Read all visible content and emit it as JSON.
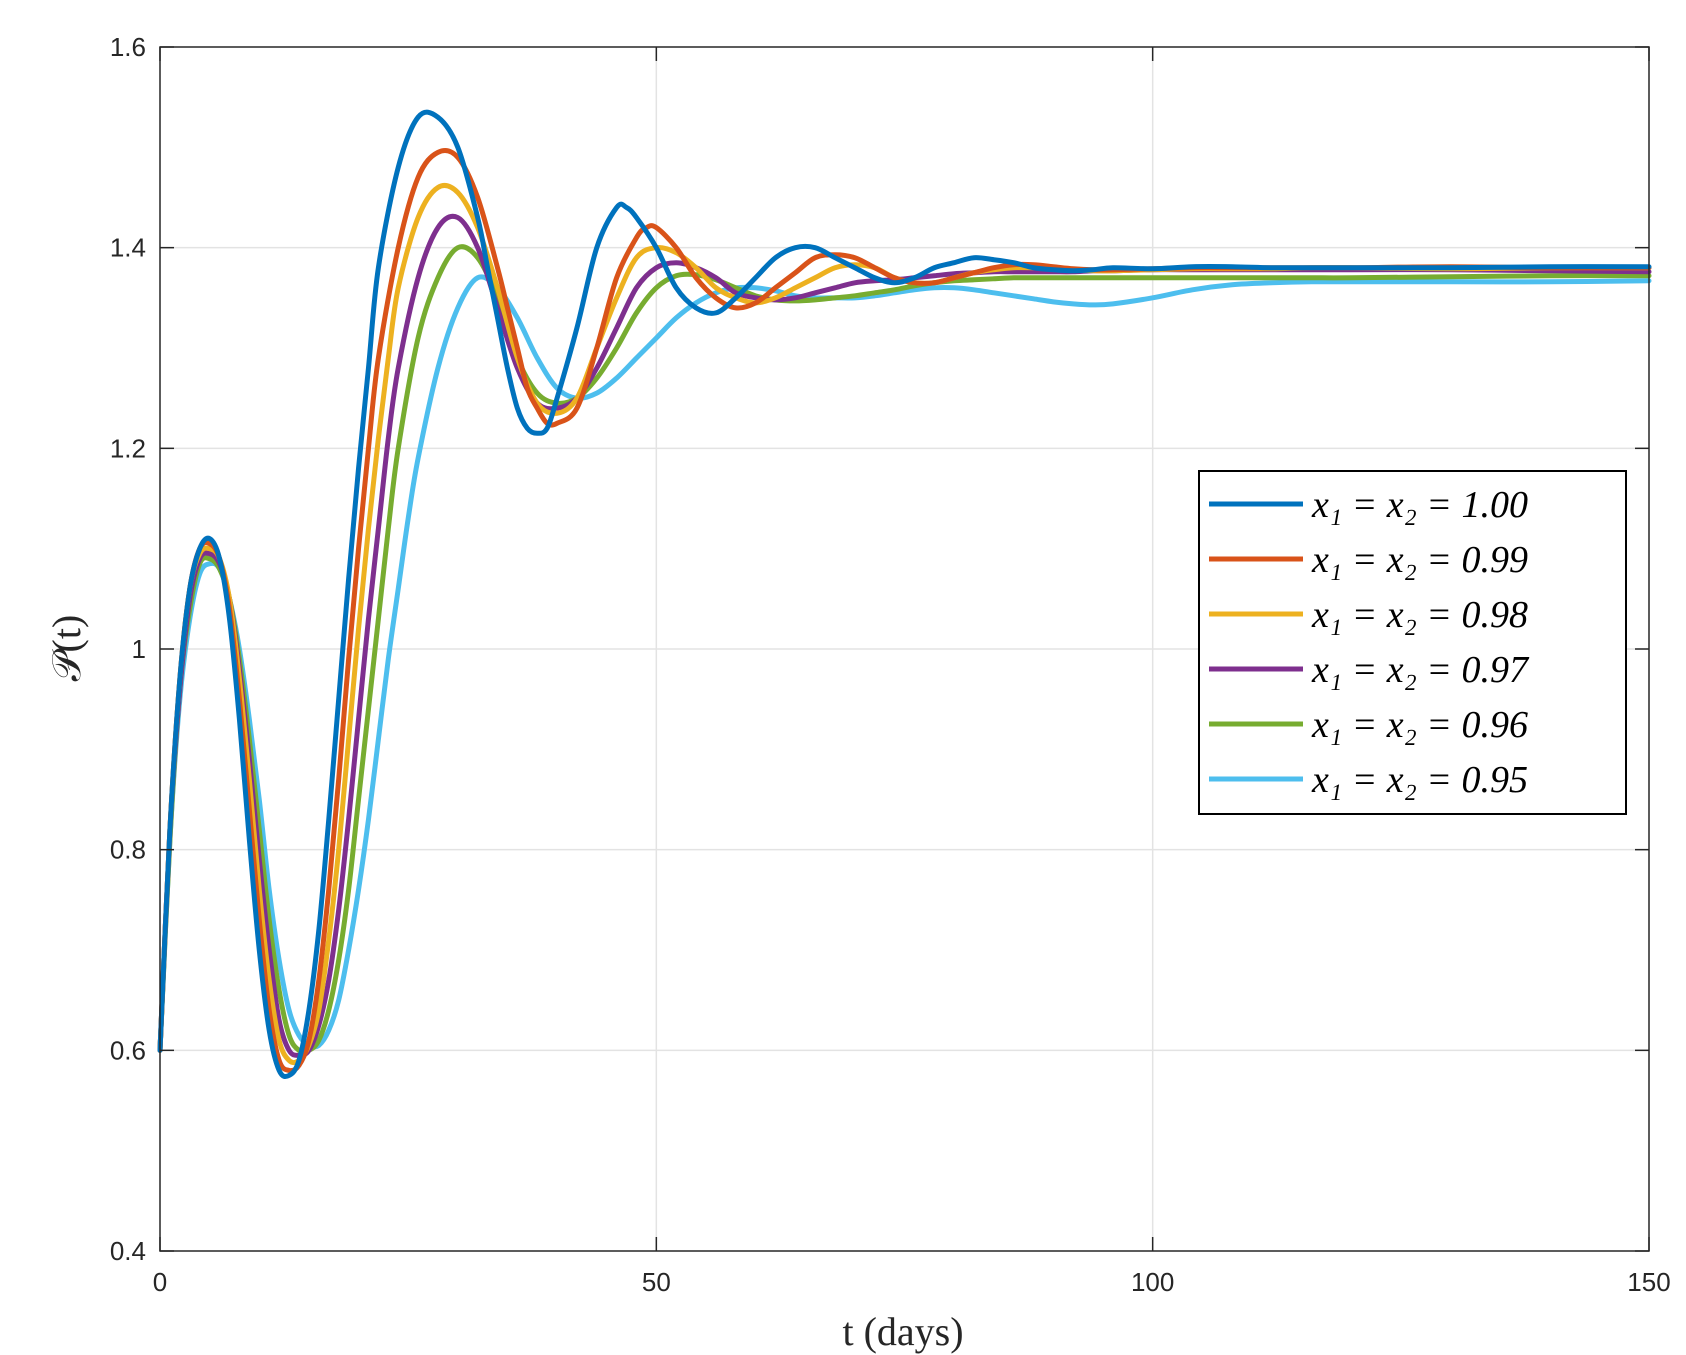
{
  "chart_data": {
    "type": "line",
    "xlabel": "t (days)",
    "ylabel": "𝒫(t)",
    "xlim": [
      0,
      150
    ],
    "ylim": [
      0.4,
      1.6
    ],
    "xticks": [
      0,
      50,
      100,
      150
    ],
    "xtick_labels": [
      "0",
      "50",
      "100",
      "150"
    ],
    "yticks": [
      0.4,
      0.6,
      0.8,
      1.0,
      1.2,
      1.4,
      1.6
    ],
    "ytick_labels": [
      "0.4",
      "0.6",
      "0.8",
      "1",
      "1.2",
      "1.4",
      "1.6"
    ],
    "grid": true,
    "legend_position": "right",
    "series": [
      {
        "name": "x₁ = x₂ = 1.00",
        "color": "#0072BD",
        "x": [
          0,
          1,
          2,
          3,
          4,
          5,
          6,
          7,
          8,
          9,
          10,
          11,
          12,
          13,
          14,
          15,
          16,
          17,
          18,
          19,
          20,
          21,
          22,
          24,
          26,
          28,
          30,
          32,
          33,
          34,
          35,
          36,
          37,
          38,
          39,
          40,
          42,
          44,
          46,
          47,
          48,
          50,
          52,
          54,
          56,
          58,
          60,
          62,
          64,
          66,
          68,
          70,
          72,
          74,
          76,
          78,
          80,
          82,
          84,
          86,
          88,
          90,
          92,
          94,
          96,
          100,
          104,
          108,
          112,
          116,
          120,
          130,
          140,
          150
        ],
        "y": [
          0.6,
          0.82,
          0.97,
          1.06,
          1.1,
          1.11,
          1.09,
          1.03,
          0.93,
          0.81,
          0.7,
          0.62,
          0.58,
          0.575,
          0.59,
          0.64,
          0.72,
          0.83,
          0.95,
          1.07,
          1.18,
          1.28,
          1.38,
          1.48,
          1.53,
          1.53,
          1.5,
          1.43,
          1.38,
          1.33,
          1.28,
          1.24,
          1.22,
          1.215,
          1.22,
          1.25,
          1.32,
          1.4,
          1.44,
          1.44,
          1.43,
          1.4,
          1.36,
          1.34,
          1.335,
          1.35,
          1.37,
          1.39,
          1.4,
          1.4,
          1.39,
          1.38,
          1.37,
          1.365,
          1.37,
          1.38,
          1.385,
          1.39,
          1.388,
          1.385,
          1.38,
          1.378,
          1.377,
          1.378,
          1.38,
          1.379,
          1.381,
          1.381,
          1.38,
          1.38,
          1.38,
          1.38,
          1.381,
          1.381
        ]
      },
      {
        "name": "x₁ = x₂ = 0.99",
        "color": "#D95319",
        "x": [
          0,
          1,
          2,
          3,
          4,
          5,
          6,
          7,
          8,
          9,
          10,
          11,
          12,
          13,
          14,
          15,
          16,
          17,
          18,
          19,
          20,
          21,
          22,
          24,
          26,
          28,
          30,
          32,
          34,
          35,
          36,
          37,
          38,
          39,
          40,
          42,
          44,
          46,
          48,
          49,
          50,
          52,
          54,
          56,
          58,
          60,
          62,
          64,
          66,
          68,
          70,
          72,
          74,
          76,
          78,
          80,
          82,
          84,
          86,
          88,
          90,
          92,
          94,
          96,
          100,
          104,
          108,
          112,
          116,
          120,
          130,
          140,
          150
        ],
        "y": [
          0.6,
          0.82,
          0.97,
          1.06,
          1.1,
          1.105,
          1.09,
          1.04,
          0.95,
          0.84,
          0.73,
          0.64,
          0.59,
          0.58,
          0.585,
          0.61,
          0.67,
          0.76,
          0.87,
          0.99,
          1.1,
          1.2,
          1.29,
          1.4,
          1.47,
          1.495,
          1.49,
          1.45,
          1.38,
          1.34,
          1.3,
          1.26,
          1.24,
          1.225,
          1.225,
          1.24,
          1.3,
          1.37,
          1.41,
          1.42,
          1.42,
          1.4,
          1.37,
          1.35,
          1.34,
          1.345,
          1.36,
          1.375,
          1.39,
          1.393,
          1.39,
          1.38,
          1.37,
          1.365,
          1.365,
          1.37,
          1.375,
          1.38,
          1.383,
          1.383,
          1.381,
          1.379,
          1.378,
          1.378,
          1.379,
          1.38,
          1.38,
          1.38,
          1.38,
          1.38,
          1.381,
          1.38,
          1.38
        ]
      },
      {
        "name": "x₁ = x₂ = 0.98",
        "color": "#EDB120",
        "x": [
          0,
          1,
          2,
          3,
          4,
          5,
          6,
          7,
          8,
          9,
          10,
          11,
          12,
          13,
          14,
          15,
          16,
          17,
          18,
          19,
          20,
          21,
          22,
          23,
          24,
          26,
          28,
          30,
          32,
          34,
          36,
          38,
          40,
          42,
          44,
          46,
          48,
          50,
          52,
          54,
          56,
          58,
          60,
          62,
          64,
          66,
          68,
          70,
          72,
          74,
          76,
          78,
          80,
          82,
          84,
          86,
          88,
          90,
          92,
          94,
          96,
          100,
          104,
          108,
          112,
          116,
          120,
          130,
          140,
          150
        ],
        "y": [
          0.6,
          0.82,
          0.97,
          1.06,
          1.095,
          1.1,
          1.09,
          1.05,
          0.97,
          0.87,
          0.76,
          0.67,
          0.61,
          0.59,
          0.59,
          0.605,
          0.64,
          0.71,
          0.8,
          0.91,
          1.02,
          1.12,
          1.21,
          1.29,
          1.36,
          1.43,
          1.46,
          1.455,
          1.42,
          1.36,
          1.29,
          1.245,
          1.235,
          1.25,
          1.3,
          1.35,
          1.39,
          1.4,
          1.395,
          1.38,
          1.36,
          1.35,
          1.345,
          1.35,
          1.36,
          1.37,
          1.38,
          1.383,
          1.38,
          1.37,
          1.365,
          1.365,
          1.37,
          1.375,
          1.378,
          1.38,
          1.38,
          1.379,
          1.378,
          1.377,
          1.377,
          1.378,
          1.379,
          1.379,
          1.379,
          1.38,
          1.38,
          1.379,
          1.38,
          1.38
        ]
      },
      {
        "name": "x₁ = x₂ = 0.97",
        "color": "#7E2F8E",
        "x": [
          0,
          1,
          2,
          3,
          4,
          5,
          6,
          7,
          8,
          9,
          10,
          11,
          12,
          13,
          14,
          15,
          16,
          17,
          18,
          19,
          20,
          21,
          22,
          23,
          24,
          26,
          28,
          30,
          32,
          34,
          36,
          38,
          40,
          42,
          44,
          46,
          48,
          50,
          52,
          54,
          56,
          58,
          60,
          62,
          64,
          66,
          68,
          70,
          72,
          74,
          76,
          78,
          80,
          82,
          84,
          86,
          88,
          90,
          92,
          94,
          96,
          100,
          104,
          108,
          112,
          116,
          120,
          130,
          140,
          150
        ],
        "y": [
          0.6,
          0.82,
          0.96,
          1.05,
          1.09,
          1.095,
          1.085,
          1.05,
          0.98,
          0.89,
          0.79,
          0.7,
          0.63,
          0.6,
          0.595,
          0.6,
          0.625,
          0.67,
          0.74,
          0.83,
          0.93,
          1.03,
          1.12,
          1.21,
          1.28,
          1.37,
          1.42,
          1.43,
          1.4,
          1.34,
          1.28,
          1.245,
          1.24,
          1.25,
          1.28,
          1.32,
          1.36,
          1.38,
          1.385,
          1.38,
          1.37,
          1.355,
          1.35,
          1.348,
          1.35,
          1.355,
          1.36,
          1.365,
          1.367,
          1.368,
          1.37,
          1.372,
          1.374,
          1.375,
          1.376,
          1.376,
          1.376,
          1.376,
          1.376,
          1.377,
          1.377,
          1.378,
          1.378,
          1.378,
          1.378,
          1.378,
          1.378,
          1.378,
          1.377,
          1.376
        ]
      },
      {
        "name": "x₁ = x₂ = 0.96",
        "color": "#77AC30",
        "x": [
          0,
          1,
          2,
          3,
          4,
          5,
          6,
          7,
          8,
          9,
          10,
          11,
          12,
          13,
          14,
          15,
          16,
          17,
          18,
          19,
          20,
          21,
          22,
          23,
          24,
          26,
          28,
          30,
          32,
          34,
          36,
          38,
          40,
          42,
          44,
          46,
          48,
          50,
          52,
          54,
          56,
          58,
          60,
          62,
          64,
          66,
          68,
          70,
          72,
          74,
          76,
          78,
          80,
          82,
          84,
          86,
          88,
          90,
          92,
          94,
          96,
          100,
          104,
          108,
          112,
          116,
          120,
          130,
          140,
          150
        ],
        "y": [
          0.6,
          0.81,
          0.96,
          1.04,
          1.085,
          1.09,
          1.08,
          1.05,
          0.99,
          0.91,
          0.82,
          0.73,
          0.66,
          0.615,
          0.6,
          0.6,
          0.61,
          0.64,
          0.69,
          0.76,
          0.85,
          0.94,
          1.03,
          1.12,
          1.2,
          1.31,
          1.37,
          1.4,
          1.39,
          1.35,
          1.29,
          1.255,
          1.245,
          1.25,
          1.27,
          1.3,
          1.335,
          1.36,
          1.372,
          1.373,
          1.368,
          1.36,
          1.352,
          1.348,
          1.347,
          1.348,
          1.35,
          1.352,
          1.355,
          1.358,
          1.362,
          1.365,
          1.367,
          1.368,
          1.369,
          1.37,
          1.37,
          1.37,
          1.37,
          1.37,
          1.37,
          1.37,
          1.37,
          1.37,
          1.37,
          1.37,
          1.37,
          1.371,
          1.372,
          1.372
        ]
      },
      {
        "name": "x₁ = x₂ = 0.95",
        "color": "#4DBEEE",
        "x": [
          0,
          1,
          2,
          3,
          4,
          5,
          6,
          7,
          8,
          9,
          10,
          11,
          12,
          13,
          14,
          15,
          16,
          17,
          18,
          19,
          20,
          21,
          22,
          23,
          24,
          25,
          26,
          28,
          30,
          32,
          34,
          36,
          38,
          40,
          42,
          44,
          46,
          48,
          50,
          52,
          54,
          56,
          58,
          60,
          62,
          64,
          66,
          68,
          70,
          72,
          74,
          76,
          78,
          80,
          82,
          84,
          86,
          88,
          90,
          92,
          94,
          96,
          100,
          104,
          108,
          112,
          116,
          120,
          130,
          140,
          150
        ],
        "y": [
          0.6,
          0.81,
          0.95,
          1.03,
          1.075,
          1.085,
          1.08,
          1.05,
          1.0,
          0.93,
          0.85,
          0.76,
          0.69,
          0.64,
          0.615,
          0.605,
          0.605,
          0.62,
          0.65,
          0.7,
          0.76,
          0.83,
          0.91,
          0.99,
          1.06,
          1.13,
          1.19,
          1.28,
          1.34,
          1.37,
          1.36,
          1.33,
          1.29,
          1.26,
          1.25,
          1.255,
          1.27,
          1.29,
          1.31,
          1.33,
          1.345,
          1.355,
          1.36,
          1.36,
          1.357,
          1.352,
          1.35,
          1.35,
          1.35,
          1.352,
          1.355,
          1.358,
          1.36,
          1.36,
          1.358,
          1.355,
          1.352,
          1.349,
          1.346,
          1.344,
          1.343,
          1.344,
          1.35,
          1.358,
          1.363,
          1.365,
          1.366,
          1.366,
          1.366,
          1.366,
          1.367
        ]
      }
    ]
  }
}
